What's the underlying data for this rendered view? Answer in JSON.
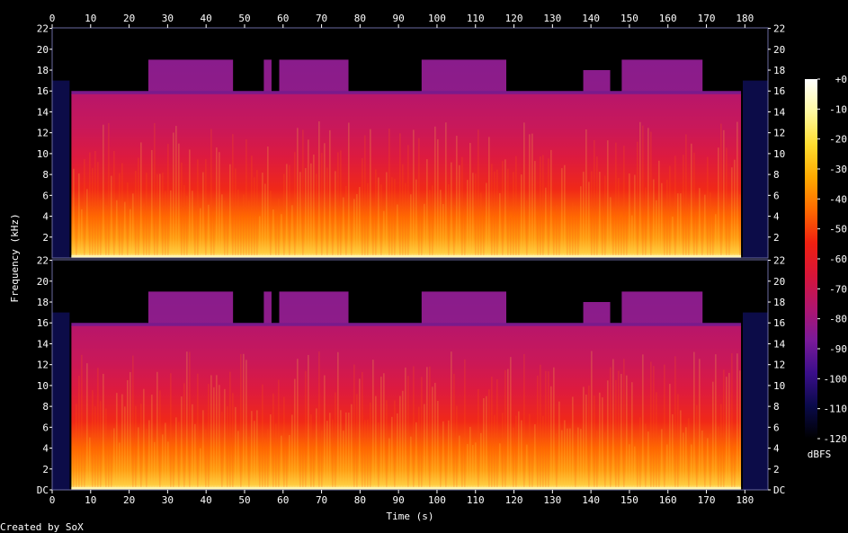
{
  "chart_data": {
    "type": "heatmap",
    "title": "",
    "xlabel": "Time (s)",
    "ylabel": "Frequency (kHz)",
    "x_ticks": [
      0,
      10,
      20,
      30,
      40,
      50,
      60,
      70,
      80,
      90,
      100,
      110,
      120,
      130,
      140,
      150,
      160,
      170,
      180
    ],
    "x_range": [
      0,
      186
    ],
    "y_ticks": [
      "DC",
      "2",
      "4",
      "6",
      "8",
      "10",
      "12",
      "14",
      "16",
      "18",
      "20",
      "22"
    ],
    "y_range_khz": [
      0,
      22.05
    ],
    "channels": [
      {
        "name": "",
        "upper_cutoff_khz": 15.7
      },
      {
        "name": "",
        "upper_cutoff_khz": 15.7
      }
    ],
    "silence_edges_s": [
      5,
      179
    ],
    "padding_band_khz": 17,
    "extended_bandwidth_segments": [
      {
        "start_s": 25,
        "end_s": 47,
        "top_khz": 19
      },
      {
        "start_s": 55,
        "end_s": 57,
        "top_khz": 19
      },
      {
        "start_s": 59,
        "end_s": 77,
        "top_khz": 19
      },
      {
        "start_s": 96,
        "end_s": 118,
        "top_khz": 19
      },
      {
        "start_s": 138,
        "end_s": 145,
        "top_khz": 18
      },
      {
        "start_s": 148,
        "end_s": 169,
        "top_khz": 19
      }
    ],
    "colorbar": {
      "label": "dBFS",
      "ticks": [
        "+0",
        "-10",
        "-20",
        "-30",
        "-40",
        "-50",
        "-60",
        "-70",
        "-80",
        "-90",
        "-100",
        "-110",
        "-120"
      ],
      "range": [
        -120,
        0
      ],
      "colors": [
        "#000000",
        "#0a0a4a",
        "#3a0e8a",
        "#7a1a9a",
        "#b0156e",
        "#d81538",
        "#f02010",
        "#ff6a00",
        "#ffaa00",
        "#ffdd30",
        "#fff9a0",
        "#ffffff"
      ]
    },
    "footer": "Created by SoX"
  }
}
